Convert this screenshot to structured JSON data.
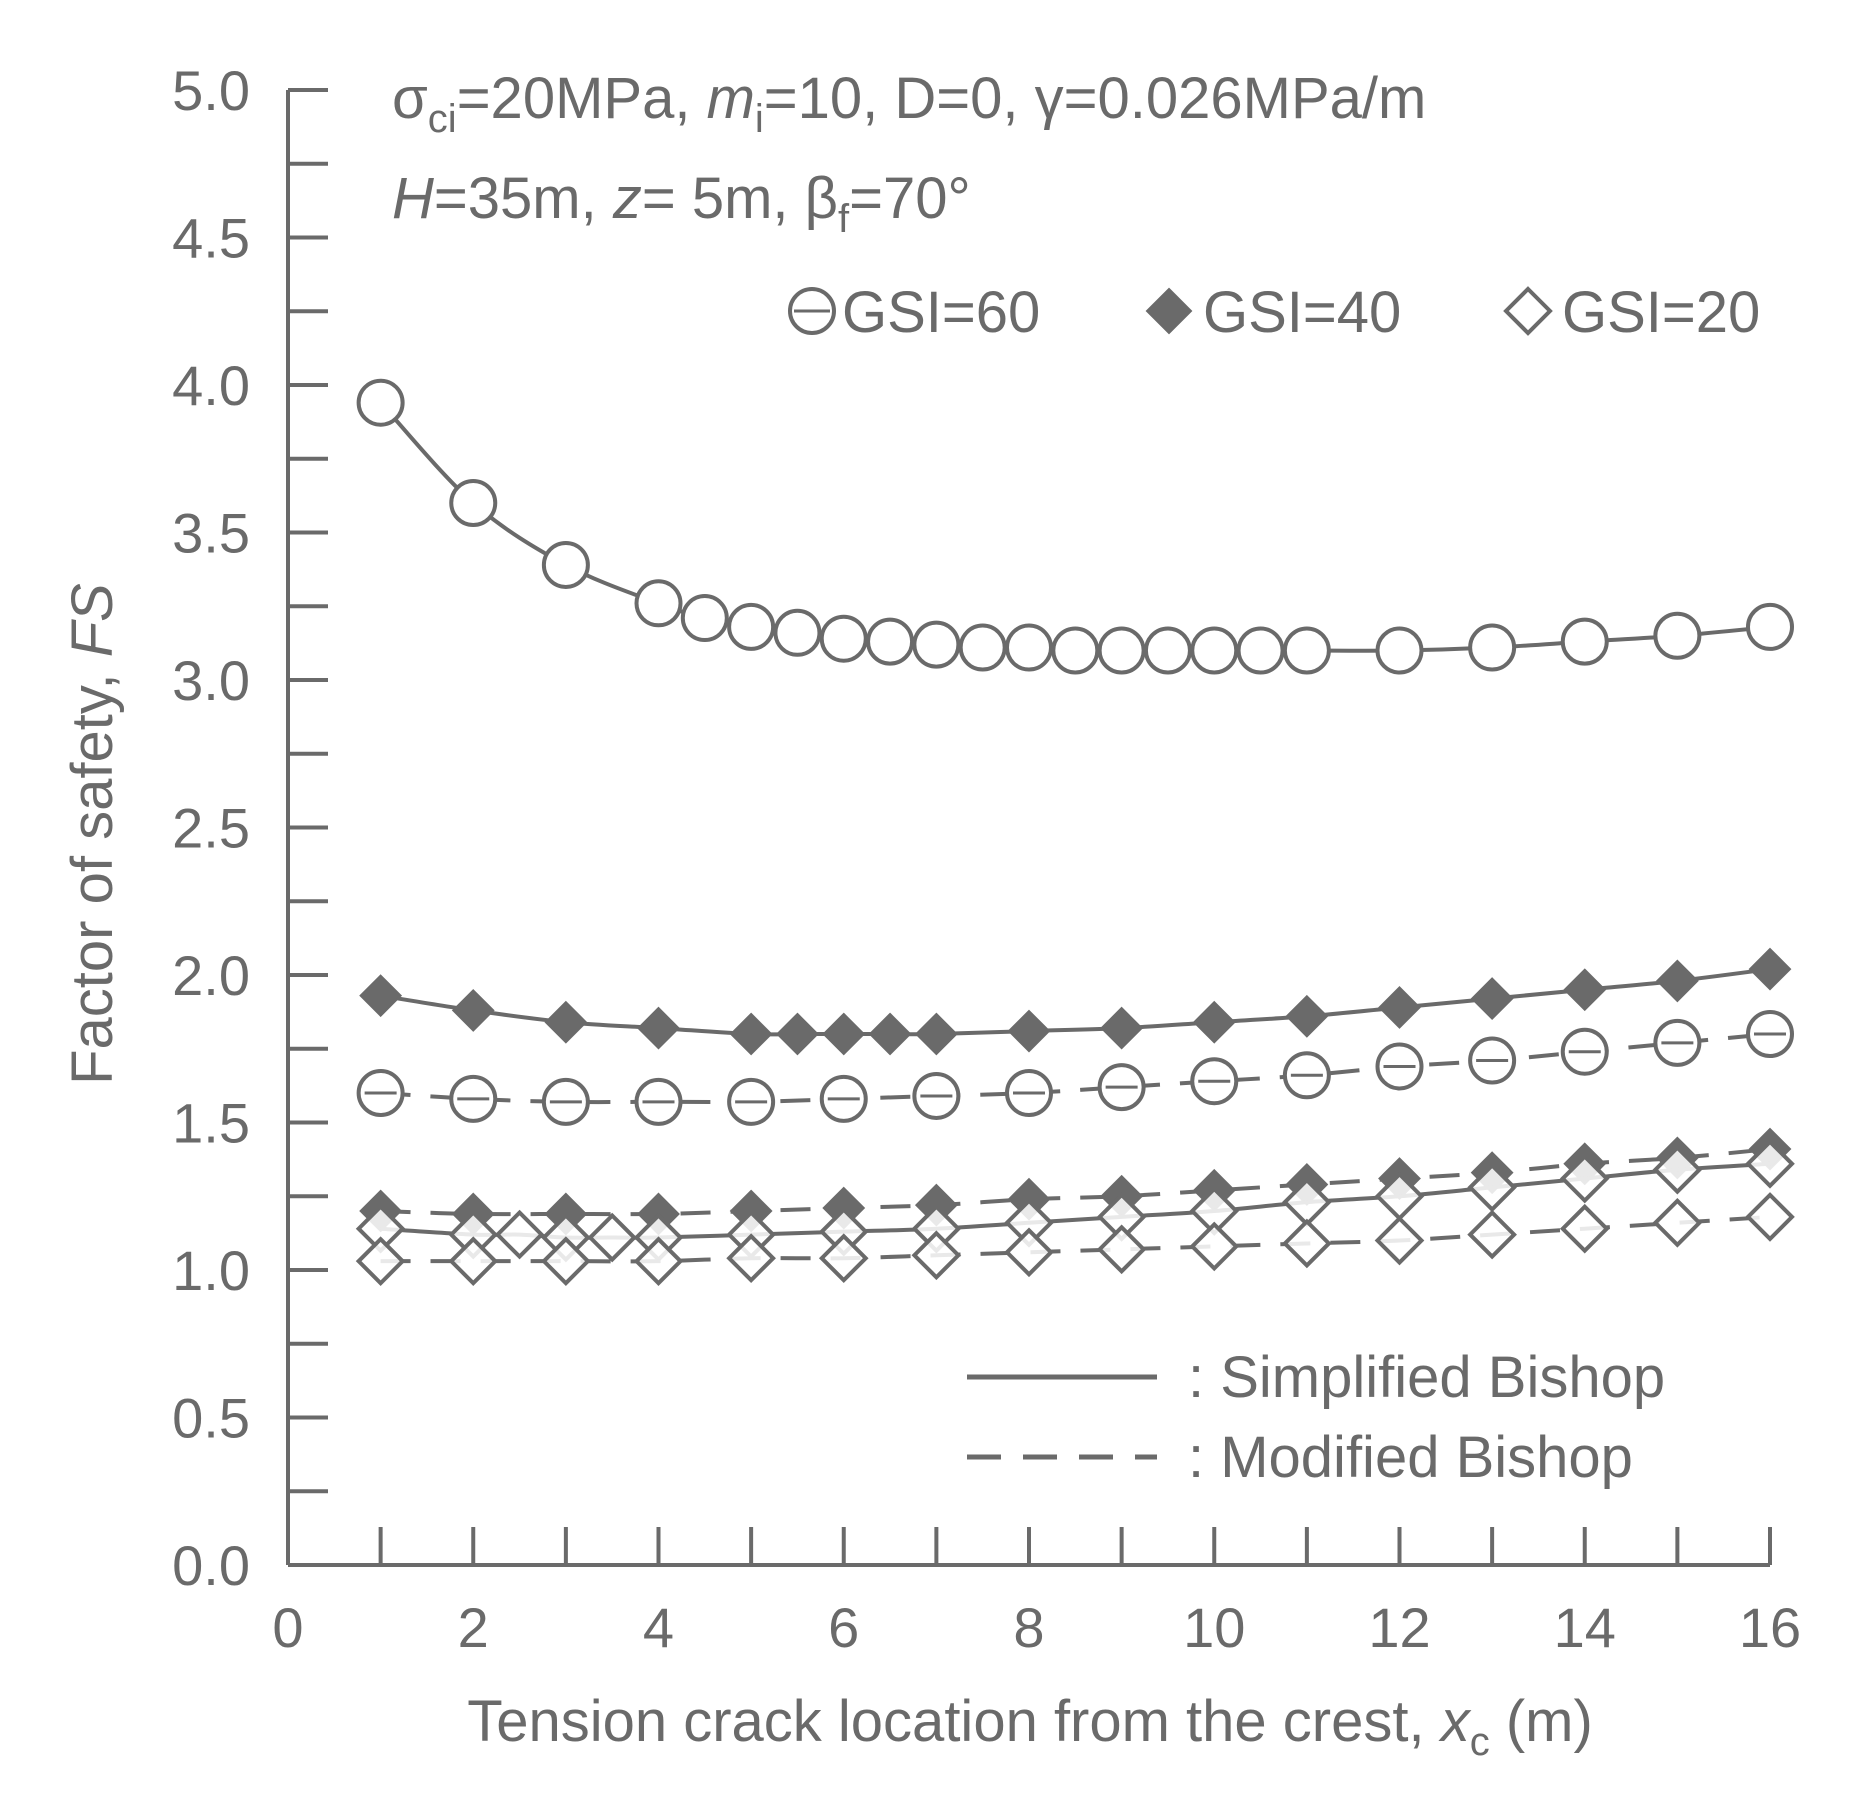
{
  "chart_data": {
    "type": "line",
    "ylabel": {
      "text": "Factor of safety, ",
      "italic": "FS"
    },
    "xlabel": {
      "text": "Tension crack location from the crest, ",
      "italic_var": "x",
      "sub": "c",
      "unit": " (m)"
    },
    "xlim": [
      0,
      16
    ],
    "ylim": [
      0,
      5
    ],
    "xticks": [
      0,
      2,
      4,
      6,
      8,
      10,
      12,
      14,
      16
    ],
    "xtick_labels": [
      "0",
      "2",
      "4",
      "6",
      "8",
      "10",
      "12",
      "14",
      "16"
    ],
    "yticks": [
      0,
      0.5,
      1,
      1.5,
      2,
      2.5,
      3,
      3.5,
      4,
      4.5,
      5
    ],
    "ytick_labels": [
      "0.0",
      "0.5",
      "1.0",
      "1.5",
      "2.0",
      "2.5",
      "3.0",
      "3.5",
      "4.0",
      "4.5",
      "5.0"
    ],
    "annotation_line1": {
      "sigma": "σ",
      "sigma_sub": "ci",
      "a": "=20MPa, ",
      "m": "m",
      "m_sub": "i",
      "b": "=10, D=0, ",
      "gamma": "γ",
      "c": "=0.026MPa/m"
    },
    "annotation_line2": {
      "H": "H",
      "a": "=35m, ",
      "z": "z",
      "b": "= 5m,  ",
      "beta": "β",
      "beta_sub": "f",
      "c": "=70°"
    },
    "marker_legend": [
      "GSI=60",
      "GSI=40",
      "GSI=20"
    ],
    "line_legend": [
      ": Simplified Bishop",
      ": Modified Bishop"
    ],
    "series": [
      {
        "name": "GSI=60 Simplified Bishop",
        "marker": "circle",
        "line": "solid",
        "x": [
          1,
          2,
          3,
          4,
          4.5,
          5,
          5.5,
          6,
          6.5,
          7,
          7.5,
          8,
          8.5,
          9,
          9.5,
          10,
          10.5,
          11,
          12,
          13,
          14,
          15,
          16
        ],
        "y": [
          3.94,
          3.6,
          3.39,
          3.26,
          3.21,
          3.18,
          3.16,
          3.14,
          3.13,
          3.12,
          3.11,
          3.11,
          3.1,
          3.1,
          3.1,
          3.1,
          3.1,
          3.1,
          3.1,
          3.11,
          3.13,
          3.15,
          3.18
        ]
      },
      {
        "name": "GSI=40 Simplified Bishop",
        "marker": "filled-diamond",
        "line": "solid",
        "x": [
          1,
          2,
          3,
          4,
          5,
          5.5,
          6,
          6.5,
          7,
          8,
          9,
          10,
          11,
          12,
          13,
          14,
          15,
          16
        ],
        "y": [
          1.93,
          1.88,
          1.84,
          1.82,
          1.8,
          1.8,
          1.8,
          1.8,
          1.8,
          1.81,
          1.82,
          1.84,
          1.86,
          1.89,
          1.92,
          1.95,
          1.98,
          2.02
        ]
      },
      {
        "name": "GSI=60 Modified Bishop",
        "marker": "circle",
        "line": "dashed",
        "x": [
          1,
          2,
          3,
          4,
          5,
          6,
          7,
          8,
          9,
          10,
          11,
          12,
          13,
          14,
          15,
          16
        ],
        "y": [
          1.6,
          1.58,
          1.57,
          1.57,
          1.57,
          1.58,
          1.59,
          1.6,
          1.62,
          1.64,
          1.66,
          1.69,
          1.71,
          1.74,
          1.77,
          1.8
        ]
      },
      {
        "name": "GSI=40 Modified Bishop",
        "marker": "filled-diamond",
        "line": "dashed",
        "x": [
          1,
          2,
          3,
          4,
          5,
          6,
          7,
          8,
          9,
          10,
          11,
          12,
          13,
          14,
          15,
          16
        ],
        "y": [
          1.2,
          1.19,
          1.19,
          1.19,
          1.2,
          1.21,
          1.22,
          1.24,
          1.25,
          1.27,
          1.29,
          1.31,
          1.33,
          1.36,
          1.38,
          1.41
        ]
      },
      {
        "name": "GSI=20 Simplified Bishop",
        "marker": "open-diamond",
        "line": "solid",
        "x": [
          1,
          2,
          2.5,
          3,
          3.5,
          4,
          5,
          6,
          7,
          8,
          9,
          10,
          11,
          12,
          13,
          14,
          15,
          16
        ],
        "y": [
          1.14,
          1.12,
          1.12,
          1.11,
          1.11,
          1.11,
          1.12,
          1.13,
          1.14,
          1.16,
          1.18,
          1.2,
          1.23,
          1.25,
          1.28,
          1.31,
          1.34,
          1.36
        ]
      },
      {
        "name": "GSI=20 Modified Bishop",
        "marker": "open-diamond",
        "line": "dashed",
        "x": [
          1,
          2,
          3,
          4,
          5,
          6,
          7,
          8,
          9,
          10,
          11,
          12,
          13,
          14,
          15,
          16
        ],
        "y": [
          1.03,
          1.03,
          1.03,
          1.03,
          1.04,
          1.04,
          1.05,
          1.06,
          1.07,
          1.08,
          1.09,
          1.1,
          1.12,
          1.14,
          1.16,
          1.18
        ]
      }
    ],
    "colors": {
      "ink": "#6a6a6a",
      "background": "#ffffff"
    }
  }
}
